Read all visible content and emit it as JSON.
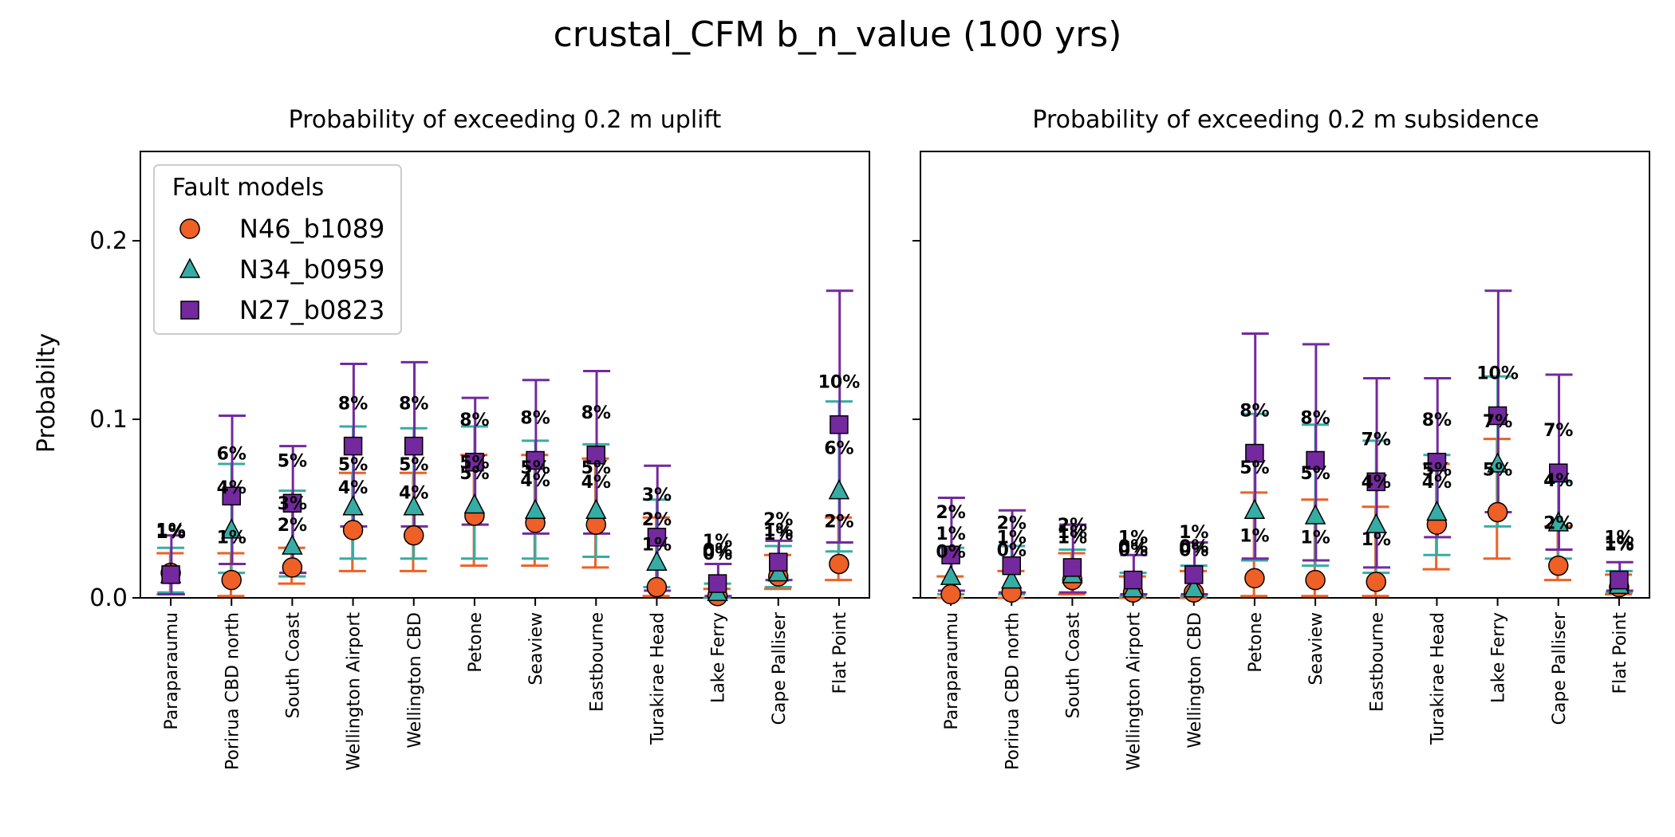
{
  "chart_data": {
    "title": "crustal_CFM b_n_value (100 yrs)",
    "ylabel": "Probabilty",
    "ylim": [
      0,
      0.25
    ],
    "yticks": [
      0.0,
      0.1,
      0.2
    ],
    "ytick_labels": [
      "0.0",
      "0.1",
      "0.2"
    ],
    "categories": [
      "Paraparaumu",
      "Porirua CBD north",
      "South Coast",
      "Wellington Airport",
      "Wellington CBD",
      "Petone",
      "Seaview",
      "Eastbourne",
      "Turakirae Head",
      "Lake Ferry",
      "Cape Palliser",
      "Flat Point"
    ],
    "legend": {
      "title": "Fault models",
      "placement": "top-left",
      "entries": [
        {
          "name": "N46_b1089",
          "marker": "circle",
          "color": "#EE6026"
        },
        {
          "name": "N34_b0959",
          "marker": "triangle",
          "color": "#36ADA4"
        },
        {
          "name": "N27_b0823",
          "marker": "square",
          "color": "#74299E"
        }
      ]
    },
    "panels": [
      {
        "title": "Probability of exceeding 0.2 m uplift",
        "series": [
          {
            "name": "N46_b1089",
            "color": "#EE6026",
            "values": [
              0.014,
              0.01,
              0.017,
              0.038,
              0.035,
              0.046,
              0.042,
              0.041,
              0.006,
              0.001,
              0.012,
              0.019
            ],
            "low": [
              0.002,
              0.001,
              0.008,
              0.015,
              0.015,
              0.018,
              0.018,
              0.017,
              0.001,
              0.0,
              0.005,
              0.01
            ],
            "high": [
              0.025,
              0.025,
              0.028,
              0.07,
              0.07,
              0.08,
              0.08,
              0.078,
              0.045,
              0.005,
              0.024,
              0.045
            ],
            "labels": [
              "1%",
              "1%",
              "2%",
              "4%",
              "4%",
              "5%",
              "4%",
              "4%",
              "1%",
              "0%",
              "1%",
              "2%"
            ]
          },
          {
            "name": "N34_b0959",
            "color": "#36ADA4",
            "values": [
              0.013,
              0.038,
              0.029,
              0.051,
              0.051,
              0.052,
              0.049,
              0.049,
              0.02,
              0.003,
              0.014,
              0.06
            ],
            "low": [
              0.003,
              0.014,
              0.012,
              0.022,
              0.022,
              0.022,
              0.022,
              0.023,
              0.006,
              0.0,
              0.006,
              0.026
            ],
            "high": [
              0.028,
              0.075,
              0.06,
              0.096,
              0.095,
              0.096,
              0.088,
              0.086,
              0.055,
              0.008,
              0.029,
              0.11
            ],
            "labels": [
              "1%",
              "4%",
              "3%",
              "5%",
              "5%",
              "5%",
              "5%",
              "5%",
              "2%",
              "0%",
              "1%",
              "6%"
            ]
          },
          {
            "name": "N27_b0823",
            "color": "#74299E",
            "values": [
              0.013,
              0.057,
              0.053,
              0.085,
              0.085,
              0.076,
              0.077,
              0.08,
              0.034,
              0.008,
              0.02,
              0.097
            ],
            "low": [
              0.002,
              0.019,
              0.014,
              0.04,
              0.04,
              0.041,
              0.036,
              0.036,
              0.004,
              0.001,
              0.01,
              0.031
            ],
            "high": [
              0.035,
              0.102,
              0.085,
              0.131,
              0.132,
              0.112,
              0.122,
              0.127,
              0.074,
              0.019,
              0.032,
              0.172
            ],
            "labels": [
              "1%",
              "6%",
              "5%",
              "8%",
              "8%",
              "8%",
              "8%",
              "8%",
              "3%",
              "1%",
              "2%",
              "10%"
            ]
          }
        ]
      },
      {
        "title": "Probability of exceeding 0.2 m subsidence",
        "series": [
          {
            "name": "N46_b1089",
            "color": "#EE6026",
            "values": [
              0.002,
              0.003,
              0.01,
              0.003,
              0.003,
              0.011,
              0.01,
              0.009,
              0.041,
              0.048,
              0.018,
              0.006
            ],
            "low": [
              0.0,
              0.0,
              0.002,
              0.0,
              0.0,
              0.001,
              0.001,
              0.001,
              0.016,
              0.022,
              0.01,
              0.002
            ],
            "high": [
              0.012,
              0.015,
              0.025,
              0.012,
              0.015,
              0.059,
              0.055,
              0.051,
              0.075,
              0.089,
              0.04,
              0.013
            ],
            "labels": [
              "0%",
              "0%",
              "1%",
              "0%",
              "0%",
              "1%",
              "1%",
              "1%",
              "4%",
              "5%",
              "2%",
              "1%"
            ]
          },
          {
            "name": "N34_b0959",
            "color": "#36ADA4",
            "values": [
              0.012,
              0.01,
              0.013,
              0.005,
              0.005,
              0.049,
              0.046,
              0.041,
              0.048,
              0.075,
              0.042,
              0.007
            ],
            "low": [
              0.002,
              0.002,
              0.003,
              0.001,
              0.001,
              0.021,
              0.018,
              0.014,
              0.024,
              0.04,
              0.022,
              0.003
            ],
            "high": [
              0.028,
              0.029,
              0.027,
              0.014,
              0.018,
              0.103,
              0.097,
              0.088,
              0.08,
              0.124,
              0.065,
              0.015
            ],
            "labels": [
              "1%",
              "1%",
              "1%",
              "0%",
              "0%",
              "5%",
              "5%",
              "4%",
              "5%",
              "7%",
              "4%",
              "1%"
            ]
          },
          {
            "name": "N27_b0823",
            "color": "#74299E",
            "values": [
              0.024,
              0.018,
              0.017,
              0.01,
              0.013,
              0.081,
              0.077,
              0.065,
              0.076,
              0.102,
              0.07,
              0.01
            ],
            "low": [
              0.004,
              0.003,
              0.003,
              0.002,
              0.002,
              0.022,
              0.021,
              0.017,
              0.034,
              0.048,
              0.027,
              0.004
            ],
            "high": [
              0.056,
              0.049,
              0.041,
              0.024,
              0.031,
              0.148,
              0.142,
              0.123,
              0.123,
              0.172,
              0.125,
              0.02
            ],
            "labels": [
              "2%",
              "2%",
              "2%",
              "1%",
              "1%",
              "8%",
              "8%",
              "7%",
              "8%",
              "10%",
              "7%",
              "1%"
            ]
          }
        ]
      }
    ]
  }
}
